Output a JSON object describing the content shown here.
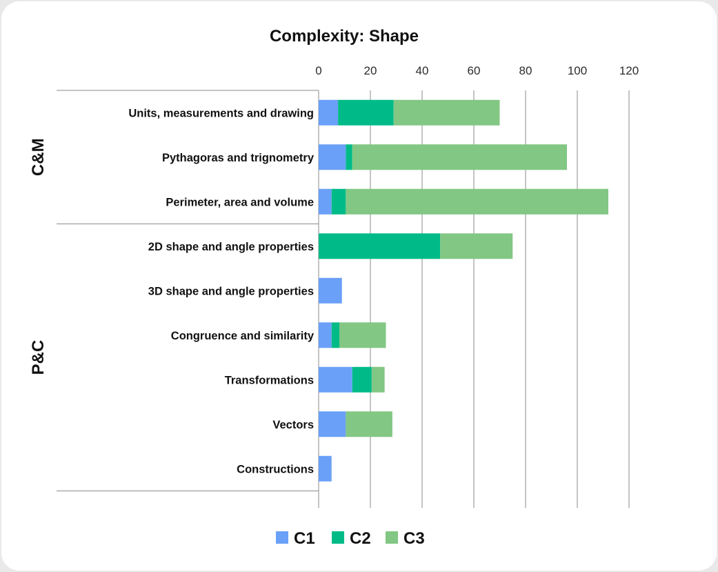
{
  "chart_data": {
    "type": "bar",
    "orientation": "horizontal",
    "stacked": true,
    "title": "Complexity: Shape",
    "xlim": [
      0,
      120
    ],
    "xticks": [
      0,
      20,
      40,
      60,
      80,
      100,
      120
    ],
    "grid": true,
    "legend_position": "bottom",
    "groups": [
      {
        "label": "C&M",
        "categories": [
          "Units, measurements and drawing",
          "Pythagoras and trignometry",
          "Perimeter, area and volume"
        ]
      },
      {
        "label": "P&C",
        "categories": [
          "2D shape and angle properties",
          "3D shape and angle properties",
          "Congruence and similarity",
          "Transformations",
          "Vectors",
          "Constructions"
        ]
      }
    ],
    "categories": [
      "Units, measurements and drawing",
      "Pythagoras and trignometry",
      "Perimeter, area and volume",
      "2D shape and angle properties",
      "3D shape and angle properties",
      "Congruence and similarity",
      "Transformations",
      "Vectors",
      "Constructions"
    ],
    "series": [
      {
        "name": "C1",
        "color": "#6aa0f8",
        "values": [
          7.5,
          10.5,
          5,
          0,
          9,
          5,
          13,
          10.5,
          5
        ]
      },
      {
        "name": "C2",
        "color": "#00bb88",
        "values": [
          21.5,
          2.5,
          5.5,
          47,
          0,
          3,
          7.5,
          0,
          0
        ]
      },
      {
        "name": "C3",
        "color": "#82c784",
        "values": [
          41,
          83,
          101.5,
          28,
          0,
          18,
          5,
          18,
          0
        ]
      }
    ]
  }
}
